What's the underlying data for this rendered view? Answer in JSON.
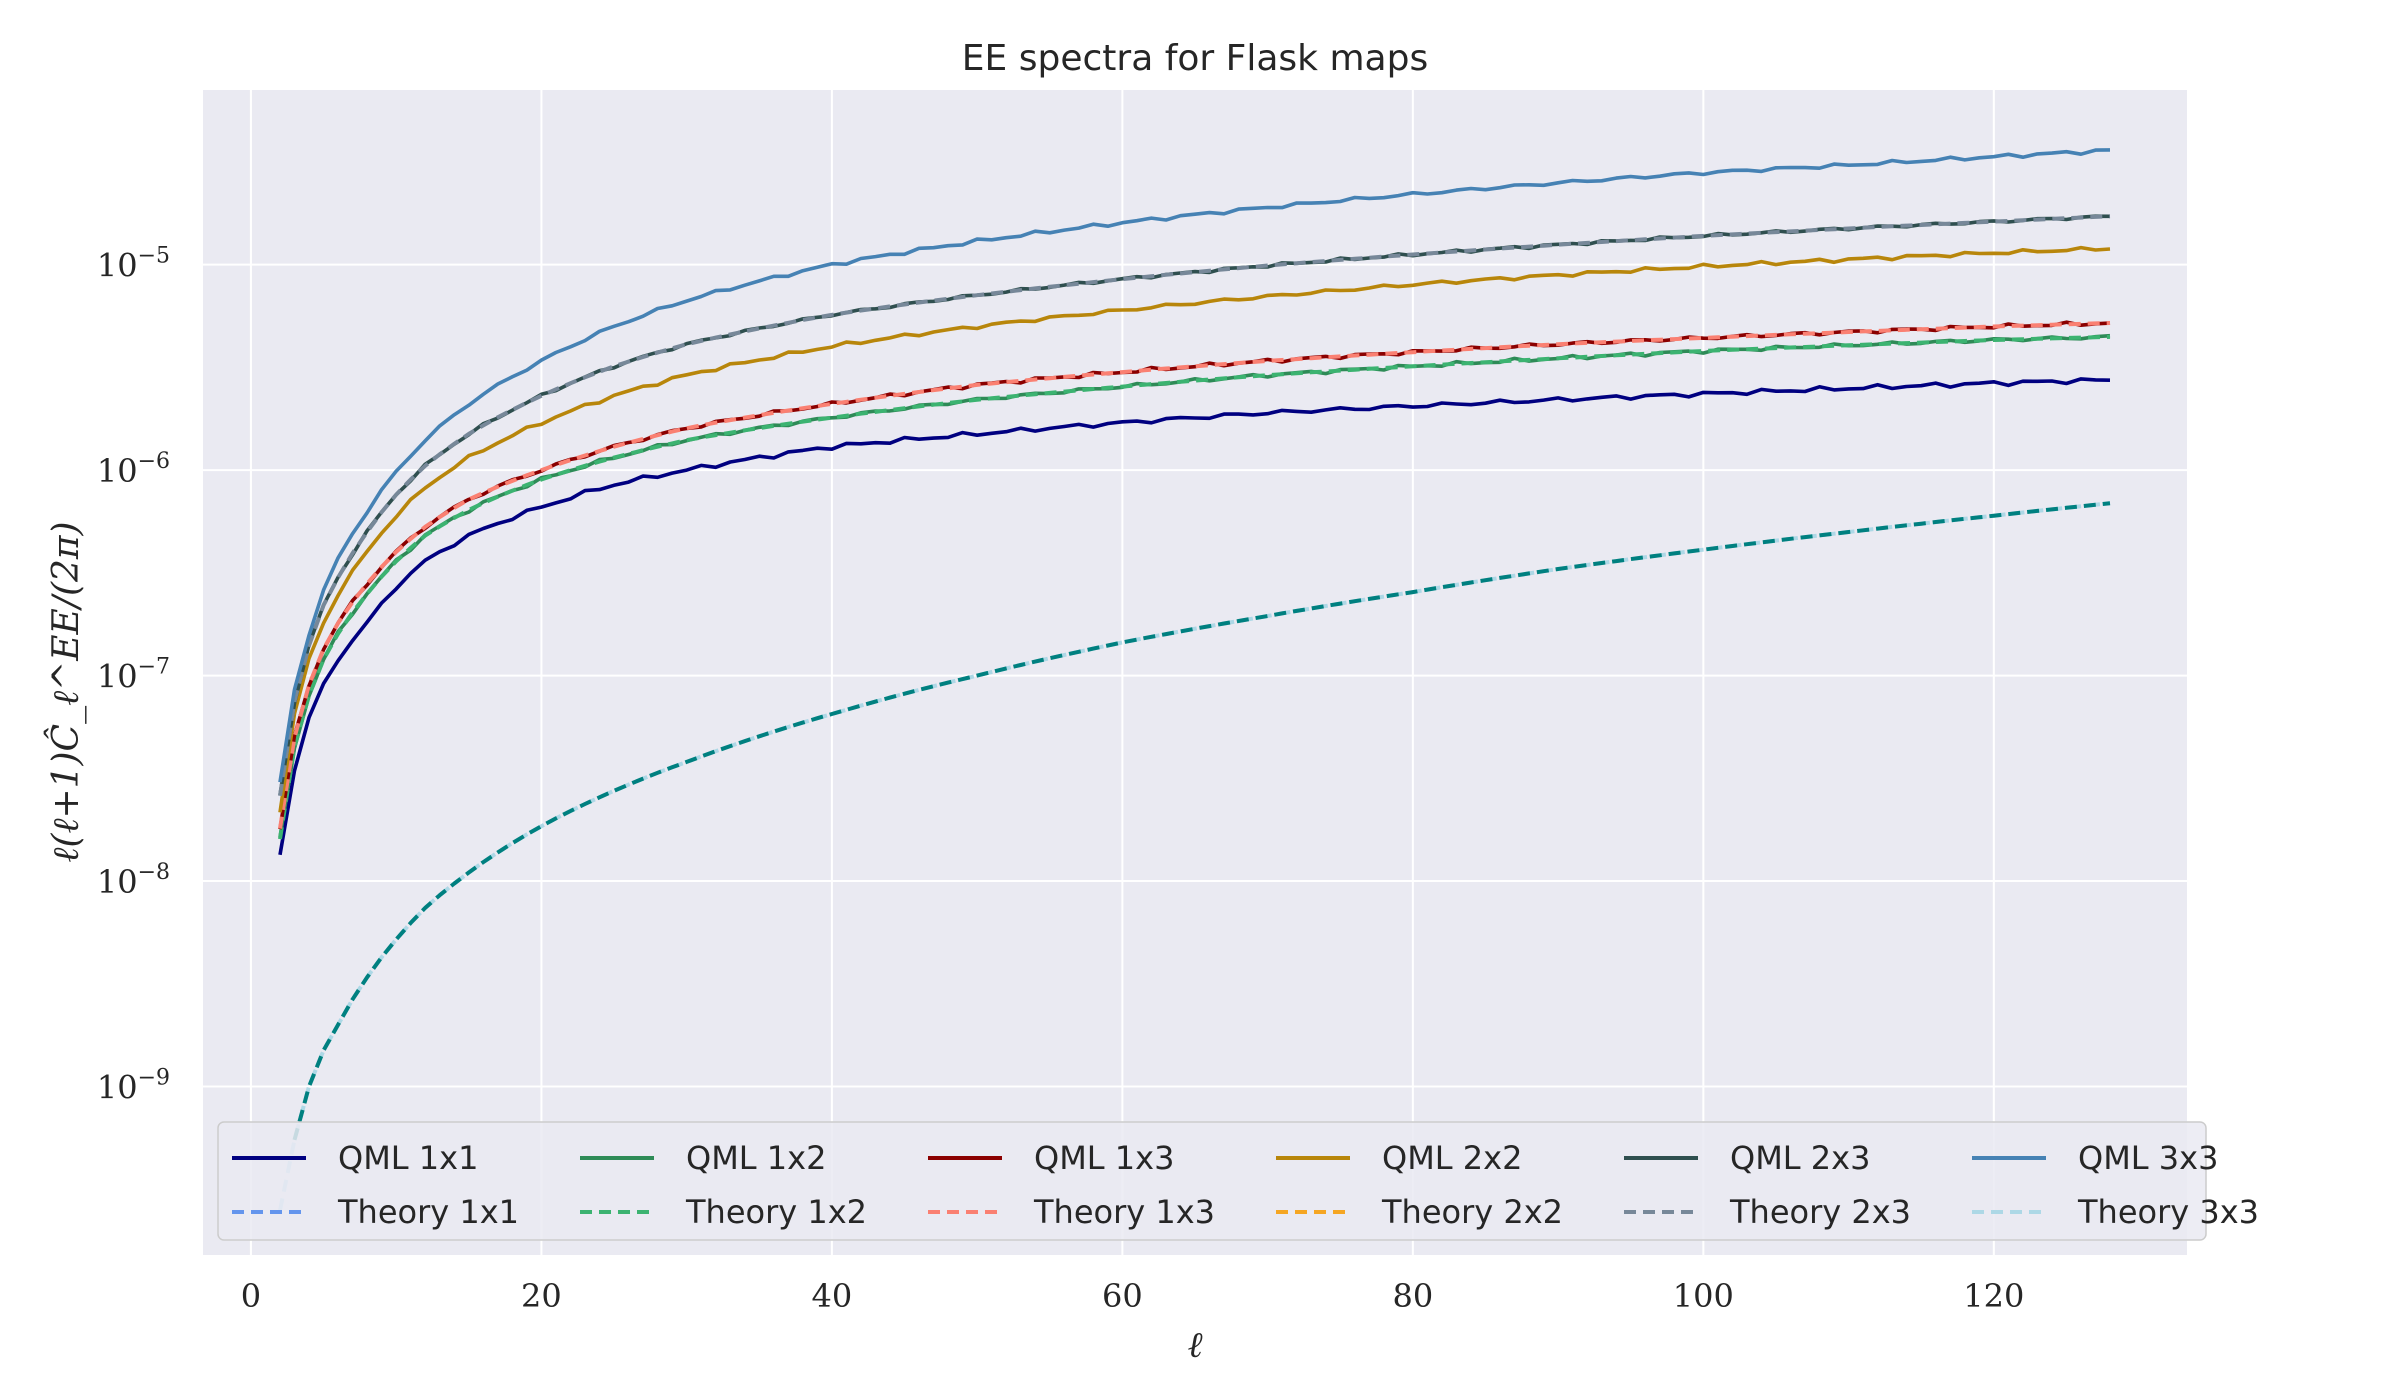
{
  "chart_data": {
    "type": "line",
    "title": "EE spectra for Flask maps",
    "xlabel": "ℓ",
    "ylabel": "ℓ(ℓ+1)Ĉ_ℓ^EE/(2π)",
    "xlim": [
      -3.3,
      133.3
    ],
    "ylim_log10": [
      -9.82,
      -4.15
    ],
    "y_scale": "log",
    "grid": true,
    "legend_position": "lower center",
    "x_ticks": [
      0,
      20,
      40,
      60,
      80,
      100,
      120
    ],
    "x_tick_labels": [
      "0",
      "20",
      "40",
      "60",
      "80",
      "100",
      "120"
    ],
    "y_ticks_log10": [
      -9,
      -8,
      -7,
      -6,
      -5
    ],
    "y_tick_mantissa": [
      "10",
      "10",
      "10",
      "10",
      "10"
    ],
    "y_tick_exponents": [
      "−9",
      "−8",
      "−7",
      "−6",
      "−5"
    ],
    "series": [
      {
        "name": "QML 1x1",
        "color": "#000080",
        "style": "solid",
        "noise": 0.03,
        "anchors": [
          [
            2,
            1.35e-08
          ],
          [
            3,
            3.5e-08
          ],
          [
            4,
            6.2e-08
          ],
          [
            5,
            9e-08
          ],
          [
            6,
            1.2e-07
          ],
          [
            8,
            1.8e-07
          ],
          [
            10,
            2.7e-07
          ],
          [
            12,
            3.6e-07
          ],
          [
            15,
            4.8e-07
          ],
          [
            20,
            6.6e-07
          ],
          [
            25,
            8.5e-07
          ],
          [
            30,
            1e-06
          ],
          [
            40,
            1.3e-06
          ],
          [
            50,
            1.5e-06
          ],
          [
            60,
            1.7e-06
          ],
          [
            70,
            1.9e-06
          ],
          [
            80,
            2.05e-06
          ],
          [
            90,
            2.2e-06
          ],
          [
            100,
            2.35e-06
          ],
          [
            110,
            2.5e-06
          ],
          [
            120,
            2.65e-06
          ],
          [
            128,
            2.75e-06
          ]
        ]
      },
      {
        "name": "Theory 1x1",
        "color": "#6495ed",
        "style": "dashed",
        "noise": 0,
        "anchors": []
      },
      {
        "name": "QML 1x2",
        "color": "#2e8b57",
        "style": "solid",
        "noise": 0.025,
        "anchors": [
          [
            2,
            1.6e-08
          ],
          [
            3,
            4.5e-08
          ],
          [
            4,
            8e-08
          ],
          [
            5,
            1.2e-07
          ],
          [
            6,
            1.6e-07
          ],
          [
            8,
            2.5e-07
          ],
          [
            10,
            3.6e-07
          ],
          [
            12,
            4.8e-07
          ],
          [
            15,
            6.4e-07
          ],
          [
            20,
            9e-07
          ],
          [
            25,
            1.15e-06
          ],
          [
            30,
            1.4e-06
          ],
          [
            40,
            1.8e-06
          ],
          [
            50,
            2.2e-06
          ],
          [
            60,
            2.55e-06
          ],
          [
            70,
            2.9e-06
          ],
          [
            80,
            3.2e-06
          ],
          [
            90,
            3.5e-06
          ],
          [
            100,
            3.8e-06
          ],
          [
            110,
            4.05e-06
          ],
          [
            120,
            4.3e-06
          ],
          [
            128,
            4.45e-06
          ]
        ]
      },
      {
        "name": "Theory 1x2",
        "color": "#3cb371",
        "style": "dashed",
        "noise": 0,
        "anchors": [
          [
            2,
            1.6e-08
          ],
          [
            3,
            4.5e-08
          ],
          [
            4,
            8e-08
          ],
          [
            5,
            1.2e-07
          ],
          [
            6,
            1.6e-07
          ],
          [
            8,
            2.5e-07
          ],
          [
            10,
            3.6e-07
          ],
          [
            12,
            4.8e-07
          ],
          [
            15,
            6.4e-07
          ],
          [
            20,
            9e-07
          ],
          [
            25,
            1.15e-06
          ],
          [
            30,
            1.4e-06
          ],
          [
            40,
            1.8e-06
          ],
          [
            50,
            2.2e-06
          ],
          [
            60,
            2.55e-06
          ],
          [
            70,
            2.9e-06
          ],
          [
            80,
            3.2e-06
          ],
          [
            90,
            3.5e-06
          ],
          [
            100,
            3.8e-06
          ],
          [
            110,
            4.05e-06
          ],
          [
            120,
            4.3e-06
          ],
          [
            128,
            4.45e-06
          ]
        ]
      },
      {
        "name": "QML 1x3",
        "color": "#8b0000",
        "style": "solid",
        "noise": 0.025,
        "anchors": [
          [
            2,
            1.8e-08
          ],
          [
            3,
            5e-08
          ],
          [
            4,
            9e-08
          ],
          [
            5,
            1.35e-07
          ],
          [
            6,
            1.8e-07
          ],
          [
            8,
            2.8e-07
          ],
          [
            10,
            4e-07
          ],
          [
            12,
            5.3e-07
          ],
          [
            15,
            7.2e-07
          ],
          [
            20,
            1e-06
          ],
          [
            25,
            1.3e-06
          ],
          [
            30,
            1.6e-06
          ],
          [
            40,
            2.1e-06
          ],
          [
            50,
            2.6e-06
          ],
          [
            60,
            3e-06
          ],
          [
            70,
            3.4e-06
          ],
          [
            80,
            3.75e-06
          ],
          [
            90,
            4.1e-06
          ],
          [
            100,
            4.4e-06
          ],
          [
            110,
            4.7e-06
          ],
          [
            120,
            5e-06
          ],
          [
            128,
            5.2e-06
          ]
        ]
      },
      {
        "name": "Theory 1x3",
        "color": "#fa8072",
        "style": "dashed",
        "noise": 0,
        "anchors": [
          [
            2,
            1.8e-08
          ],
          [
            3,
            5e-08
          ],
          [
            4,
            9e-08
          ],
          [
            5,
            1.35e-07
          ],
          [
            6,
            1.8e-07
          ],
          [
            8,
            2.8e-07
          ],
          [
            10,
            4e-07
          ],
          [
            12,
            5.3e-07
          ],
          [
            15,
            7.2e-07
          ],
          [
            20,
            1e-06
          ],
          [
            25,
            1.3e-06
          ],
          [
            30,
            1.6e-06
          ],
          [
            40,
            2.1e-06
          ],
          [
            50,
            2.6e-06
          ],
          [
            60,
            3e-06
          ],
          [
            70,
            3.4e-06
          ],
          [
            80,
            3.75e-06
          ],
          [
            90,
            4.1e-06
          ],
          [
            100,
            4.4e-06
          ],
          [
            110,
            4.7e-06
          ],
          [
            120,
            5e-06
          ],
          [
            128,
            5.2e-06
          ]
        ]
      },
      {
        "name": "QML 2x2",
        "color": "#b8860b",
        "style": "solid",
        "noise": 0.025,
        "anchors": [
          [
            2,
            2.2e-08
          ],
          [
            3,
            6.5e-08
          ],
          [
            4,
            1.2e-07
          ],
          [
            5,
            1.8e-07
          ],
          [
            6,
            2.5e-07
          ],
          [
            8,
            4e-07
          ],
          [
            10,
            6e-07
          ],
          [
            12,
            8.2e-07
          ],
          [
            15,
            1.15e-06
          ],
          [
            20,
            1.7e-06
          ],
          [
            25,
            2.3e-06
          ],
          [
            30,
            2.9e-06
          ],
          [
            40,
            4e-06
          ],
          [
            50,
            5e-06
          ],
          [
            60,
            6e-06
          ],
          [
            70,
            7e-06
          ],
          [
            80,
            8e-06
          ],
          [
            90,
            8.9e-06
          ],
          [
            100,
            9.8e-06
          ],
          [
            110,
            1.06e-05
          ],
          [
            120,
            1.14e-05
          ],
          [
            128,
            1.2e-05
          ]
        ]
      },
      {
        "name": "Theory 2x2",
        "color": "#f5a623",
        "style": "dashed",
        "noise": 0,
        "anchors": []
      },
      {
        "name": "QML 2x3",
        "color": "#2f4f4f",
        "style": "solid",
        "noise": 0.02,
        "anchors": [
          [
            2,
            2.6e-08
          ],
          [
            3,
            7.5e-08
          ],
          [
            4,
            1.4e-07
          ],
          [
            5,
            2.2e-07
          ],
          [
            6,
            3e-07
          ],
          [
            8,
            5e-07
          ],
          [
            10,
            7.6e-07
          ],
          [
            12,
            1.05e-06
          ],
          [
            15,
            1.5e-06
          ],
          [
            20,
            2.3e-06
          ],
          [
            25,
            3.2e-06
          ],
          [
            30,
            4.1e-06
          ],
          [
            40,
            5.7e-06
          ],
          [
            50,
            7.1e-06
          ],
          [
            60,
            8.5e-06
          ],
          [
            70,
            9.9e-06
          ],
          [
            80,
            1.12e-05
          ],
          [
            90,
            1.25e-05
          ],
          [
            100,
            1.38e-05
          ],
          [
            110,
            1.5e-05
          ],
          [
            120,
            1.62e-05
          ],
          [
            128,
            1.72e-05
          ]
        ]
      },
      {
        "name": "Theory 2x3",
        "color": "#778899",
        "style": "dashed",
        "noise": 0,
        "anchors": [
          [
            2,
            2.6e-08
          ],
          [
            3,
            7.5e-08
          ],
          [
            4,
            1.4e-07
          ],
          [
            5,
            2.2e-07
          ],
          [
            6,
            3e-07
          ],
          [
            8,
            5e-07
          ],
          [
            10,
            7.6e-07
          ],
          [
            12,
            1.05e-06
          ],
          [
            15,
            1.5e-06
          ],
          [
            20,
            2.3e-06
          ],
          [
            25,
            3.2e-06
          ],
          [
            30,
            4.1e-06
          ],
          [
            40,
            5.7e-06
          ],
          [
            50,
            7.1e-06
          ],
          [
            60,
            8.5e-06
          ],
          [
            70,
            9.9e-06
          ],
          [
            80,
            1.12e-05
          ],
          [
            90,
            1.25e-05
          ],
          [
            100,
            1.38e-05
          ],
          [
            110,
            1.5e-05
          ],
          [
            120,
            1.62e-05
          ],
          [
            128,
            1.72e-05
          ]
        ]
      },
      {
        "name": "QML 3x3",
        "color": "#4682b4",
        "style": "solid",
        "noise": 0.025,
        "anchors": [
          [
            2,
            3e-08
          ],
          [
            3,
            8.5e-08
          ],
          [
            4,
            1.6e-07
          ],
          [
            5,
            2.6e-07
          ],
          [
            6,
            3.7e-07
          ],
          [
            8,
            6.3e-07
          ],
          [
            10,
            9.8e-07
          ],
          [
            12,
            1.4e-06
          ],
          [
            15,
            2.1e-06
          ],
          [
            20,
            3.4e-06
          ],
          [
            25,
            5e-06
          ],
          [
            30,
            6.7e-06
          ],
          [
            40,
            1e-05
          ],
          [
            50,
            1.3e-05
          ],
          [
            60,
            1.6e-05
          ],
          [
            70,
            1.9e-05
          ],
          [
            80,
            2.2e-05
          ],
          [
            90,
            2.5e-05
          ],
          [
            100,
            2.8e-05
          ],
          [
            110,
            3.05e-05
          ],
          [
            120,
            3.35e-05
          ],
          [
            128,
            3.6e-05
          ]
        ]
      },
      {
        "name": "Theory 3x3",
        "color": "#add8e6",
        "style": "dashed",
        "noise": 0,
        "anchors": [
          [
            2,
            2.5e-10
          ],
          [
            3,
            5.5e-10
          ],
          [
            4,
            1e-09
          ],
          [
            5,
            1.5e-09
          ],
          [
            6,
            2e-09
          ],
          [
            8,
            3.4e-09
          ],
          [
            10,
            5.2e-09
          ],
          [
            12,
            7.4e-09
          ],
          [
            15,
            1.1e-08
          ],
          [
            20,
            1.85e-08
          ],
          [
            25,
            2.75e-08
          ],
          [
            30,
            3.8e-08
          ],
          [
            40,
            6.5e-08
          ],
          [
            50,
            1e-07
          ],
          [
            60,
            1.45e-07
          ],
          [
            70,
            1.95e-07
          ],
          [
            80,
            2.55e-07
          ],
          [
            90,
            3.3e-07
          ],
          [
            100,
            4.1e-07
          ],
          [
            110,
            5e-07
          ],
          [
            120,
            6e-07
          ],
          [
            128,
            6.9e-07
          ]
        ],
        "tail_color": "#008080",
        "tail_from_x": 3
      }
    ]
  }
}
